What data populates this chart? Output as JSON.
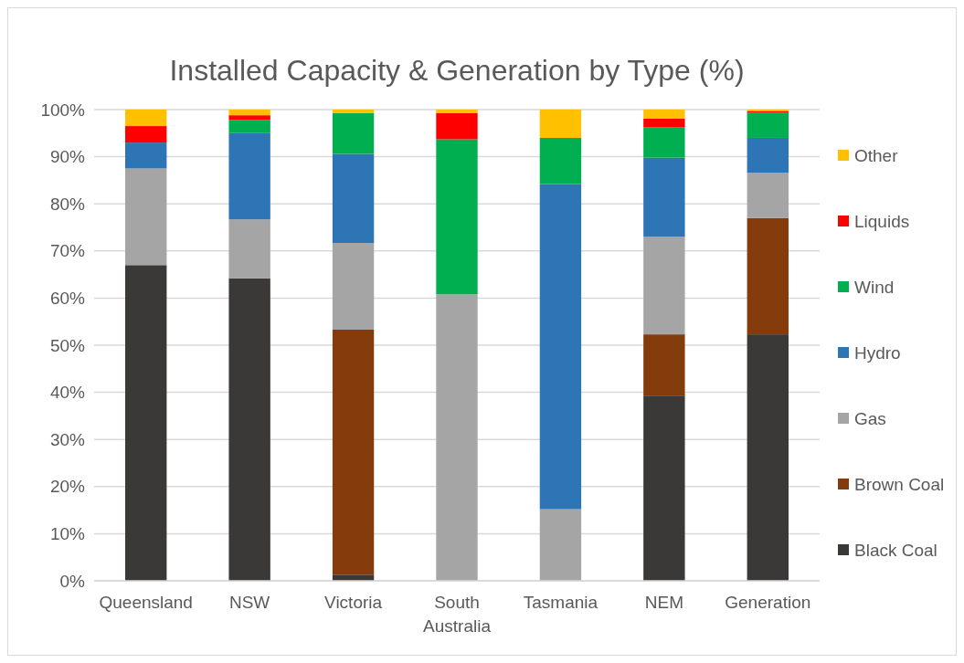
{
  "chart_data": {
    "type": "bar",
    "title": "Installed Capacity & Generation by Type (%)",
    "stacked": true,
    "categories": [
      "Queensland",
      "NSW",
      "Victoria",
      "South Australia",
      "Tasmania",
      "NEM",
      "Generation"
    ],
    "ylim": [
      0,
      100
    ],
    "yticks": [
      {
        "value": 0,
        "label": "0%"
      },
      {
        "value": 10,
        "label": "10%"
      },
      {
        "value": 20,
        "label": "20%"
      },
      {
        "value": 30,
        "label": "30%"
      },
      {
        "value": 40,
        "label": "40%"
      },
      {
        "value": 50,
        "label": "50%"
      },
      {
        "value": 60,
        "label": "60%"
      },
      {
        "value": 70,
        "label": "70%"
      },
      {
        "value": 80,
        "label": "80%"
      },
      {
        "value": 90,
        "label": "90%"
      },
      {
        "value": 100,
        "label": "100%"
      }
    ],
    "grid": "y",
    "legend": "right",
    "series": [
      {
        "name": "Black Coal",
        "color": "#3b3838",
        "values": [
          67,
          64.2,
          1.3,
          0,
          0,
          39.3,
          52.3
        ]
      },
      {
        "name": "Brown Coal",
        "color": "#843c0c",
        "values": [
          0,
          0,
          52,
          0,
          0,
          13,
          24.7
        ]
      },
      {
        "name": "Gas",
        "color": "#a5a5a5",
        "values": [
          20.5,
          12.5,
          18.4,
          60.8,
          15.2,
          20.7,
          9.6
        ]
      },
      {
        "name": "Hydro",
        "color": "#2e75b6",
        "values": [
          5.5,
          18.3,
          18.9,
          0,
          69,
          16.8,
          7.4
        ]
      },
      {
        "name": "Wind",
        "color": "#00b050",
        "values": [
          0,
          2.8,
          8.7,
          32.9,
          9.8,
          6.4,
          5.3
        ]
      },
      {
        "name": "Liquids",
        "color": "#ff0000",
        "values": [
          3.5,
          1,
          0,
          5.6,
          0,
          1.9,
          0.4
        ]
      },
      {
        "name": "Other",
        "color": "#ffc000",
        "values": [
          3.5,
          1.2,
          0.7,
          0.7,
          6,
          1.9,
          0.3
        ]
      }
    ]
  }
}
